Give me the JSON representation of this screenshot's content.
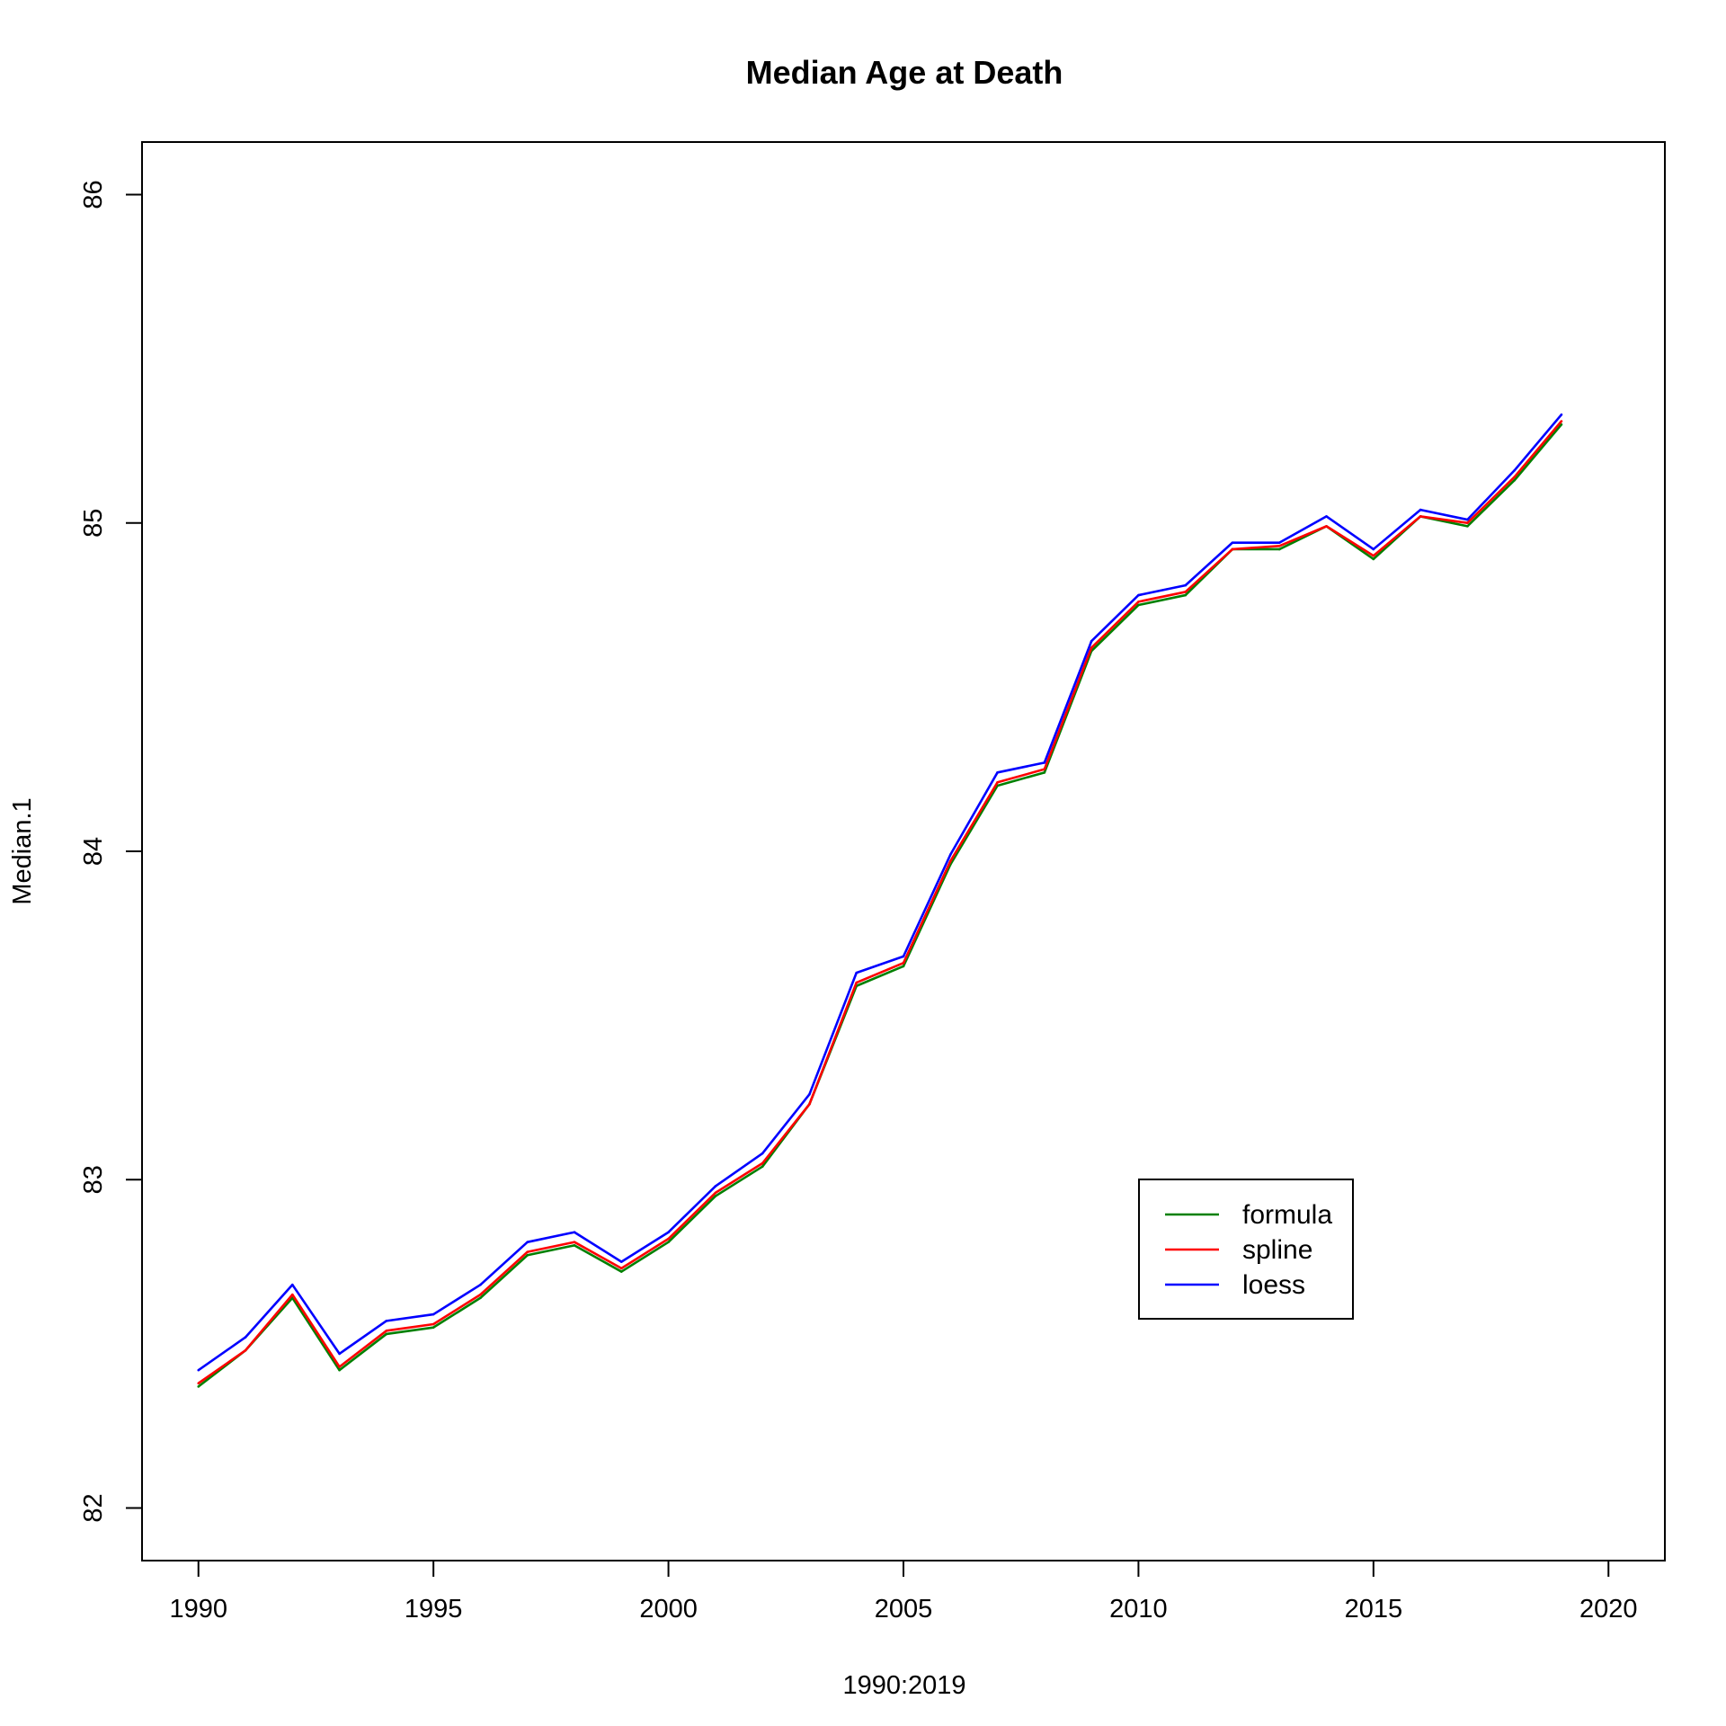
{
  "chart_data": {
    "type": "line",
    "title": "Median Age at Death",
    "xlabel": "1990:2019",
    "ylabel": "Median.1",
    "xlim": [
      1988.8,
      2021.2
    ],
    "ylim": [
      81.84,
      86.16
    ],
    "xticks": [
      1990,
      1995,
      2000,
      2005,
      2010,
      2015,
      2020
    ],
    "yticks": [
      82,
      83,
      84,
      85,
      86
    ],
    "x": [
      1990,
      1991,
      1992,
      1993,
      1994,
      1995,
      1996,
      1997,
      1998,
      1999,
      2000,
      2001,
      2002,
      2003,
      2004,
      2005,
      2006,
      2007,
      2008,
      2009,
      2010,
      2011,
      2012,
      2013,
      2014,
      2015,
      2016,
      2017,
      2018,
      2019
    ],
    "series": [
      {
        "name": "formula",
        "color": "#008000",
        "values": [
          82.37,
          82.48,
          82.64,
          82.42,
          82.53,
          82.55,
          82.64,
          82.77,
          82.8,
          82.72,
          82.81,
          82.95,
          83.04,
          83.23,
          83.59,
          83.65,
          83.96,
          84.2,
          84.24,
          84.61,
          84.75,
          84.78,
          84.92,
          84.92,
          84.99,
          84.89,
          85.02,
          84.99,
          85.13,
          85.3
        ]
      },
      {
        "name": "spline",
        "color": "#FF0000",
        "values": [
          82.38,
          82.48,
          82.65,
          82.43,
          82.54,
          82.56,
          82.65,
          82.78,
          82.81,
          82.73,
          82.82,
          82.96,
          83.05,
          83.23,
          83.6,
          83.66,
          83.97,
          84.21,
          84.25,
          84.62,
          84.76,
          84.79,
          84.92,
          84.93,
          84.99,
          84.9,
          85.02,
          85.0,
          85.14,
          85.31
        ]
      },
      {
        "name": "loess",
        "color": "#0000FF",
        "values": [
          82.42,
          82.52,
          82.68,
          82.47,
          82.57,
          82.59,
          82.68,
          82.81,
          82.84,
          82.75,
          82.84,
          82.98,
          83.08,
          83.26,
          83.63,
          83.68,
          83.99,
          84.24,
          84.27,
          84.64,
          84.78,
          84.81,
          84.94,
          84.94,
          85.02,
          84.92,
          85.04,
          85.01,
          85.16,
          85.33
        ]
      }
    ],
    "grid": false,
    "legend_position": "inside-right"
  }
}
